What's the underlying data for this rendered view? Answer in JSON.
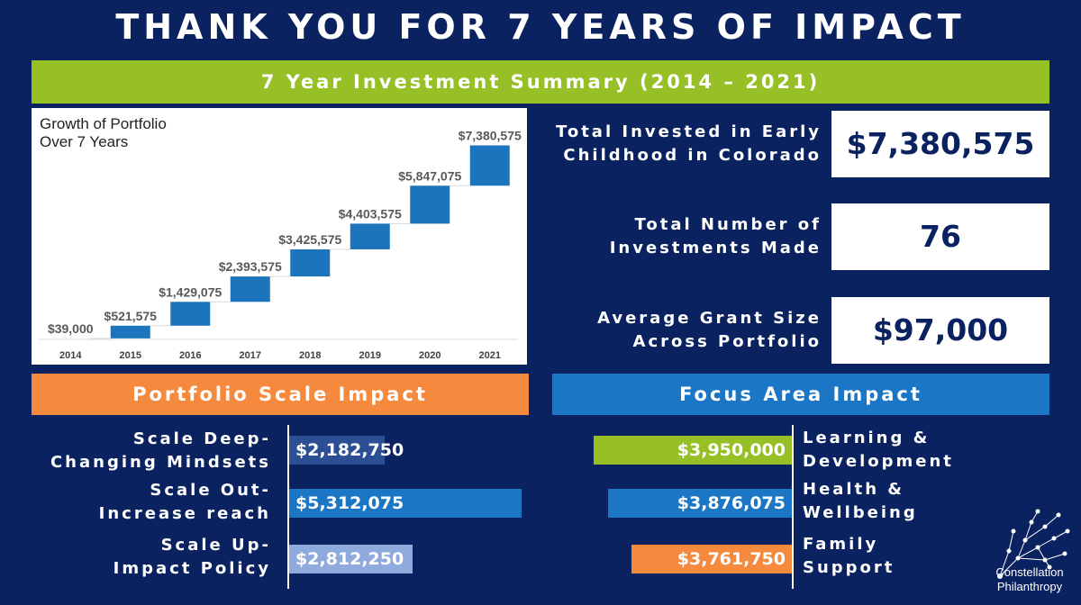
{
  "title": "THANK YOU FOR 7 YEARS OF IMPACT",
  "summary_banner": "7 Year Investment Summary (2014 – 2021)",
  "colors": {
    "background": "#0b2261",
    "green": "#97bf26",
    "orange": "#f58a3f",
    "blue": "#1b77c6",
    "chart_bar": "#1c75bc"
  },
  "stats": {
    "total_invested_label": "Total Invested in Early Childhood in Colorado",
    "total_invested_value": "$7,380,575",
    "num_investments_label": "Total Number of Investments Made",
    "num_investments_value": "76",
    "avg_grant_label": "Average Grant Size Across Portfolio",
    "avg_grant_value": "$97,000"
  },
  "scale_banner": "Portfolio Scale Impact",
  "focus_banner": "Focus Area Impact",
  "logo": {
    "icon": "constellation-icon",
    "line1": "Constellation",
    "line2": "Philanthropy"
  },
  "chart_data": [
    {
      "type": "bar",
      "subtype": "waterfall",
      "title_line1": "Growth of Portfolio",
      "title_line2": "Over 7 Years",
      "categories": [
        "2014",
        "2015",
        "2016",
        "2017",
        "2018",
        "2019",
        "2020",
        "2021"
      ],
      "values": [
        39000,
        521575,
        1429075,
        2393575,
        3425575,
        4403575,
        5847075,
        7380575
      ],
      "labels": [
        "$39,000",
        "$521,575",
        "$1,429,075",
        "$2,393,575",
        "$3,425,575",
        "$4,403,575",
        "$5,847,075",
        "$7,380,575"
      ],
      "ylim": [
        0,
        7500000
      ],
      "grid": false,
      "legend": "none"
    },
    {
      "type": "bar",
      "orientation": "horizontal",
      "title": "Portfolio Scale Impact",
      "categories": [
        "Scale Deep- Changing Mindsets",
        "Scale Out- Increase reach",
        "Scale Up- Impact Policy"
      ],
      "category_lines": [
        [
          "Scale Deep-",
          "Changing Mindsets"
        ],
        [
          "Scale Out-",
          "Increase reach"
        ],
        [
          "Scale Up-",
          "Impact Policy"
        ]
      ],
      "values": [
        2182750,
        5312075,
        2812250
      ],
      "labels": [
        "$2,182,750",
        "$5,312,075",
        "$2,812,250"
      ],
      "bar_colors": [
        "#2c4f94",
        "#1b77c6",
        "#8faadc"
      ],
      "xlim": [
        0,
        5312075
      ]
    },
    {
      "type": "bar",
      "orientation": "horizontal",
      "direction": "right-to-left",
      "title": "Focus Area Impact",
      "categories": [
        "Learning & Development",
        "Health & Wellbeing",
        "Family Support"
      ],
      "category_lines": [
        [
          "Learning &",
          "Development"
        ],
        [
          "Health &",
          "Wellbeing"
        ],
        [
          "Family",
          "Support"
        ]
      ],
      "values": [
        3950000,
        3876075,
        3761750
      ],
      "labels": [
        "$3,950,000",
        "$3,876,075",
        "$3,761,750"
      ],
      "bar_colors": [
        "#97bf26",
        "#1b77c6",
        "#f58a3f"
      ],
      "xlim": [
        0,
        3950000
      ]
    }
  ]
}
